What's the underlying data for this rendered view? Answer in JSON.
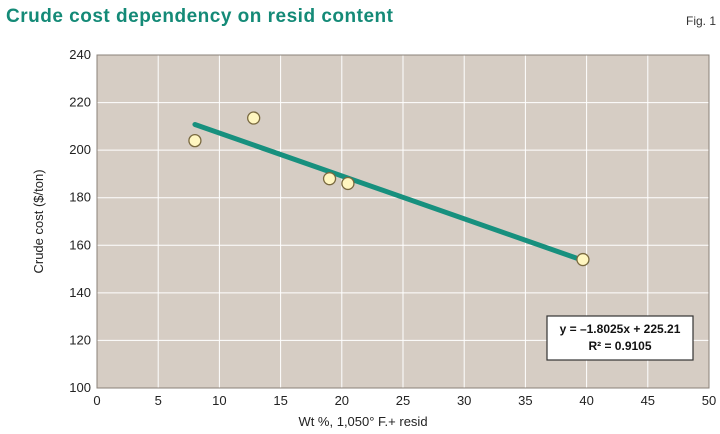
{
  "title": "Crude cost dependency on resid content",
  "figure_label": "Fig. 1",
  "chart_data": {
    "type": "scatter",
    "title": "Crude cost dependency on resid content",
    "xlabel": "Wt %, 1,050° F.+ resid",
    "ylabel": "Crude cost ($/ton)",
    "xlim": [
      0,
      50
    ],
    "ylim": [
      100,
      240
    ],
    "x_ticks": [
      0,
      5,
      10,
      15,
      20,
      25,
      30,
      35,
      40,
      45,
      50
    ],
    "y_ticks": [
      100,
      120,
      140,
      160,
      180,
      200,
      220,
      240
    ],
    "grid": true,
    "points": [
      {
        "x": 8,
        "y": 204
      },
      {
        "x": 12.8,
        "y": 213.5
      },
      {
        "x": 19,
        "y": 188
      },
      {
        "x": 20.5,
        "y": 186
      },
      {
        "x": 39.7,
        "y": 154
      }
    ],
    "trendline": {
      "slope": -1.8025,
      "intercept": 225.21,
      "x_range": [
        8,
        40
      ],
      "equation": "y = –1.8025x + 225.21",
      "r2_label": "R² = 0.9105"
    },
    "colors": {
      "plot_background": "#d6cdc4",
      "gridline": "#ffffff",
      "trendline": "#17907e",
      "marker_fill": "#fff6c0",
      "marker_stroke": "#7a6a40",
      "title": "#148a77"
    }
  }
}
